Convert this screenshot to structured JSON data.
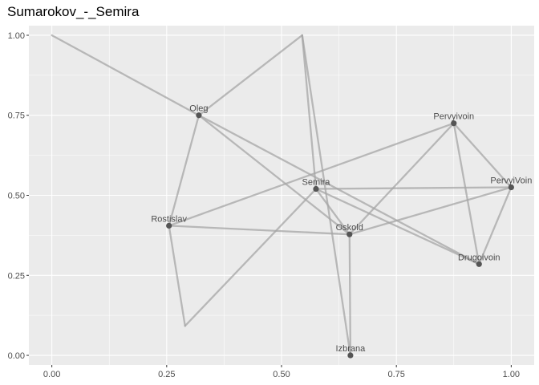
{
  "chart_data": {
    "type": "network",
    "title": "Sumarokov_-_Semira",
    "xlabel": "",
    "ylabel": "",
    "xlim": [
      -0.05,
      1.05
    ],
    "ylim": [
      -0.03,
      1.03
    ],
    "x_ticks": [
      {
        "value": 0.0,
        "label": "0.00"
      },
      {
        "value": 0.25,
        "label": "0.25"
      },
      {
        "value": 0.5,
        "label": "0.50"
      },
      {
        "value": 0.75,
        "label": "0.75"
      },
      {
        "value": 1.0,
        "label": "1.00"
      }
    ],
    "y_ticks": [
      {
        "value": 0.0,
        "label": "0.00"
      },
      {
        "value": 0.25,
        "label": "0.25"
      },
      {
        "value": 0.5,
        "label": "0.50"
      },
      {
        "value": 0.75,
        "label": "0.75"
      },
      {
        "value": 1.0,
        "label": "1.00"
      }
    ],
    "grid": true,
    "colors": {
      "panel_background": "#ebebeb",
      "grid": "#ffffff",
      "edge": "#a6a6a6",
      "node": "#555555",
      "text": "#4d4d4d"
    },
    "nodes": [
      {
        "name": "Oleg",
        "x": 0.32,
        "y": 0.75,
        "show_point": true
      },
      {
        "name": "Pervyivoin",
        "x": 0.875,
        "y": 0.725,
        "show_point": true
      },
      {
        "name": "PervyiVoin",
        "x": 1.0,
        "y": 0.525,
        "show_point": true
      },
      {
        "name": "Semira",
        "x": 0.575,
        "y": 0.52,
        "show_point": true
      },
      {
        "name": "Rostislav",
        "x": 0.255,
        "y": 0.405,
        "show_point": true
      },
      {
        "name": "Oskold",
        "x": 0.648,
        "y": 0.378,
        "show_point": true
      },
      {
        "name": "Drugoivoin",
        "x": 0.93,
        "y": 0.285,
        "show_point": true
      },
      {
        "name": "Izbrana",
        "x": 0.65,
        "y": 0.0,
        "show_point": true
      },
      {
        "name": "",
        "x": 0.0,
        "y": 1.0,
        "show_point": false
      },
      {
        "name": "",
        "x": 0.545,
        "y": 1.0,
        "show_point": false
      },
      {
        "name": "",
        "x": 0.29,
        "y": 0.092,
        "show_point": false
      }
    ],
    "edges": [
      [
        8,
        0
      ],
      [
        0,
        5
      ],
      [
        0,
        6
      ],
      [
        0,
        4
      ],
      [
        3,
        9
      ],
      [
        9,
        0
      ],
      [
        9,
        7
      ],
      [
        4,
        5
      ],
      [
        4,
        1
      ],
      [
        10,
        3
      ],
      [
        10,
        4
      ],
      [
        3,
        2
      ],
      [
        3,
        5
      ],
      [
        3,
        6
      ],
      [
        5,
        1
      ],
      [
        5,
        2
      ],
      [
        5,
        7
      ],
      [
        1,
        6
      ],
      [
        1,
        2
      ],
      [
        2,
        6
      ]
    ]
  }
}
